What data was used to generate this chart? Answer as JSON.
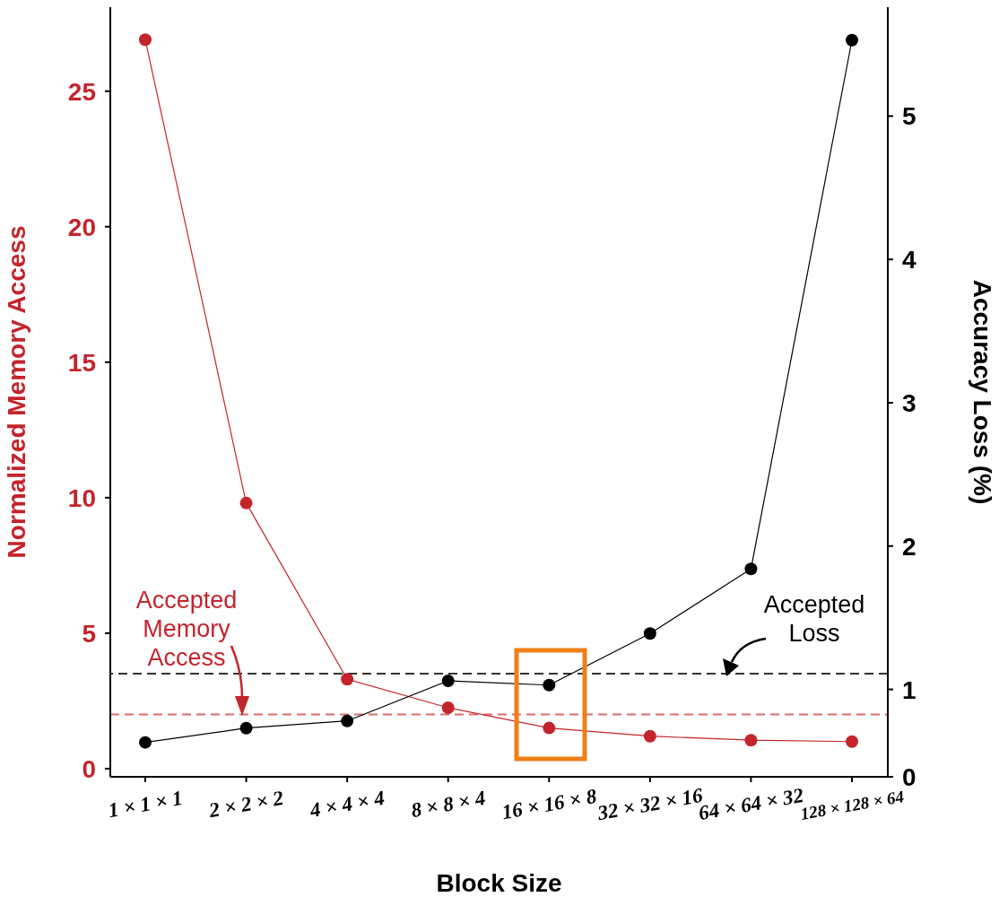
{
  "chart_data": {
    "type": "line",
    "xlabel": "Block Size",
    "ylabel": "Normalized Memory Access",
    "y2label": "Accuracy Loss (%)",
    "categories": [
      "1 × 1 × 1",
      "2 × 2 × 2",
      "4 × 4 × 4",
      "8 × 8 × 4",
      "16 × 16 × 8",
      "32 × 32 × 16",
      "64 × 64 × 32",
      "128 × 128 × 64"
    ],
    "series": [
      {
        "color": "#c4242b",
        "values": [
          26.9,
          9.8,
          3.3,
          2.25,
          1.5,
          1.2,
          1.05,
          1.0
        ]
      },
      {
        "color": "#000000",
        "axis": "y2",
        "values": [
          0.63,
          0.73,
          0.78,
          1.06,
          1.03,
          1.39,
          1.84,
          5.53
        ]
      }
    ],
    "ylim": [
      -0.3,
      28.1
    ],
    "yticks": [
      0,
      5,
      10,
      15,
      20,
      25
    ],
    "y2lim": [
      0.39,
      5.76
    ],
    "y2ticks": [
      {
        "value": 0.39,
        "label": "0"
      },
      1,
      2,
      3,
      4,
      5
    ],
    "ref_lines": [
      {
        "axis": "y",
        "value": 2.0,
        "label": "Accepted Memory Access",
        "color": "#e06a6a",
        "line_style": "dashed"
      },
      {
        "axis": "y2",
        "value": 1.11,
        "label": "Accepted Loss",
        "color": "#333333",
        "line_style": "dashed"
      }
    ],
    "marker": "circle",
    "line_style": "solid"
  }
}
